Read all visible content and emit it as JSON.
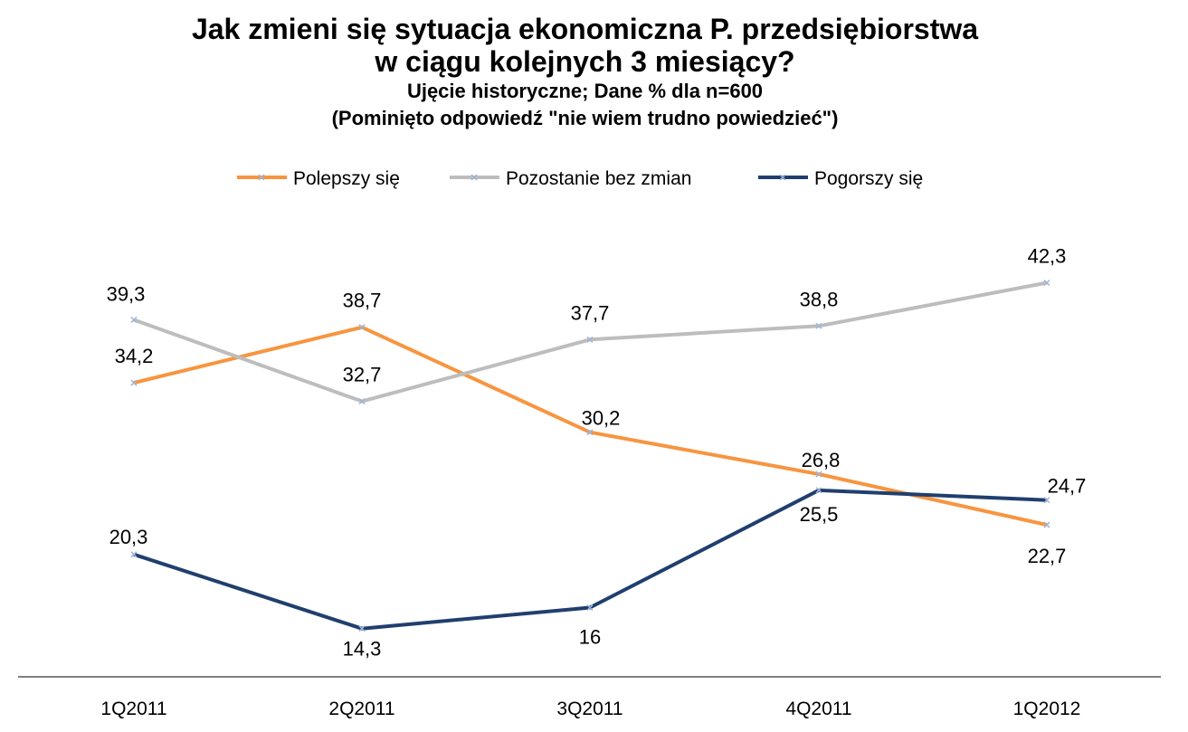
{
  "chart_data": {
    "type": "line",
    "title_lines": [
      "Jak zmieni się sytuacja ekonomiczna P. przedsiębiorstwa",
      "w ciągu kolejnych 3 miesiący?"
    ],
    "subtitle_lines": [
      "Ujęcie historyczne; Dane % dla n=600",
      "(Pominięto odpowiedź  \"nie wiem trudno  powiedzieć\")"
    ],
    "categories": [
      "1Q2011",
      "2Q2011",
      "3Q2011",
      "4Q2011",
      "1Q2012"
    ],
    "ylim": [
      0,
      60
    ],
    "grid": false,
    "legend_position": "top",
    "series": [
      {
        "name": "Polepszy się",
        "color": "#f7953f",
        "values": [
          34.2,
          38.7,
          30.2,
          26.8,
          22.7
        ],
        "labels": [
          "34,2",
          "38,7",
          "30,2",
          "26,8",
          "22,7"
        ]
      },
      {
        "name": "Pozostanie bez zmian",
        "color": "#bdbdbd",
        "values": [
          39.3,
          32.7,
          37.7,
          38.8,
          42.3
        ],
        "labels": [
          "39,3",
          "32,7",
          "37,7",
          "38,8",
          "42,3"
        ]
      },
      {
        "name": "Pogorszy się",
        "color": "#203f6e",
        "values": [
          20.3,
          14.3,
          16,
          25.5,
          24.7
        ],
        "labels": [
          "20,3",
          "14,3",
          "16",
          "25,5",
          "24,7"
        ]
      }
    ]
  }
}
